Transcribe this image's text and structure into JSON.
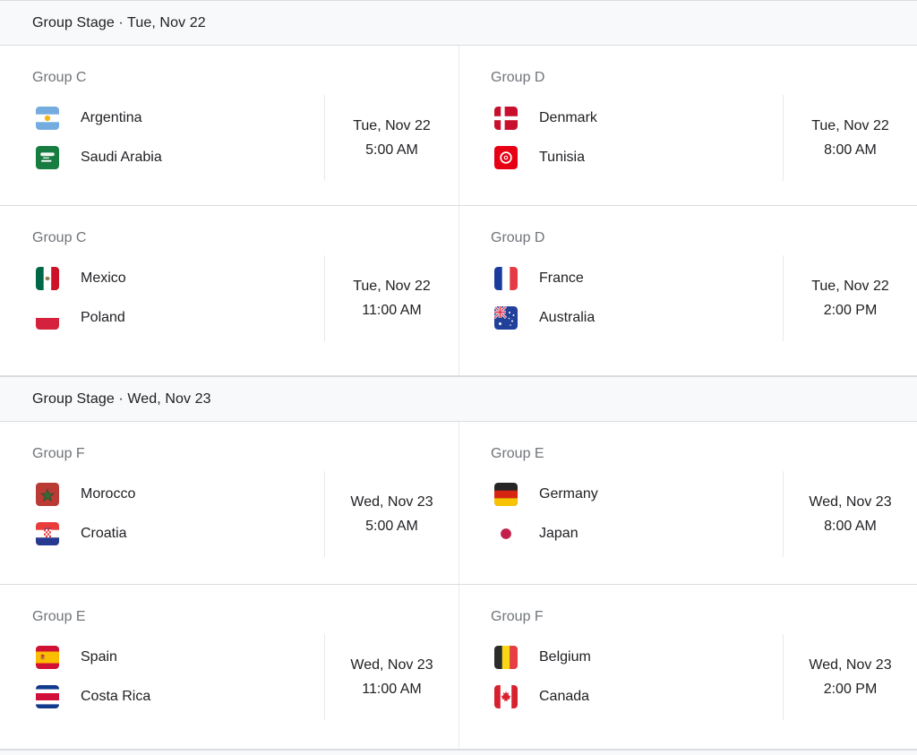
{
  "colors": {
    "section_background": "#f8f9fa",
    "row_border": "#dadce0",
    "inner_divider": "#e8eaed",
    "text_primary": "#202124",
    "text_secondary": "#70757a"
  },
  "sections": [
    {
      "header": "Group Stage · Tue, Nov 22",
      "matches": [
        {
          "group": "Group C",
          "date": "Tue, Nov 22",
          "time": "5:00 AM",
          "teams": [
            {
              "name": "Argentina",
              "flag": "argentina"
            },
            {
              "name": "Saudi Arabia",
              "flag": "saudi-arabia"
            }
          ]
        },
        {
          "group": "Group D",
          "date": "Tue, Nov 22",
          "time": "8:00 AM",
          "teams": [
            {
              "name": "Denmark",
              "flag": "denmark"
            },
            {
              "name": "Tunisia",
              "flag": "tunisia"
            }
          ]
        },
        {
          "group": "Group C",
          "date": "Tue, Nov 22",
          "time": "11:00 AM",
          "teams": [
            {
              "name": "Mexico",
              "flag": "mexico"
            },
            {
              "name": "Poland",
              "flag": "poland"
            }
          ]
        },
        {
          "group": "Group D",
          "date": "Tue, Nov 22",
          "time": "2:00 PM",
          "teams": [
            {
              "name": "France",
              "flag": "france"
            },
            {
              "name": "Australia",
              "flag": "australia"
            }
          ]
        }
      ]
    },
    {
      "header": "Group Stage · Wed, Nov 23",
      "matches": [
        {
          "group": "Group F",
          "date": "Wed, Nov 23",
          "time": "5:00 AM",
          "teams": [
            {
              "name": "Morocco",
              "flag": "morocco"
            },
            {
              "name": "Croatia",
              "flag": "croatia"
            }
          ]
        },
        {
          "group": "Group E",
          "date": "Wed, Nov 23",
          "time": "8:00 AM",
          "teams": [
            {
              "name": "Germany",
              "flag": "germany"
            },
            {
              "name": "Japan",
              "flag": "japan"
            }
          ]
        },
        {
          "group": "Group E",
          "date": "Wed, Nov 23",
          "time": "11:00 AM",
          "teams": [
            {
              "name": "Spain",
              "flag": "spain"
            },
            {
              "name": "Costa Rica",
              "flag": "costa-rica"
            }
          ]
        },
        {
          "group": "Group F",
          "date": "Wed, Nov 23",
          "time": "2:00 PM",
          "teams": [
            {
              "name": "Belgium",
              "flag": "belgium"
            },
            {
              "name": "Canada",
              "flag": "canada"
            }
          ]
        }
      ]
    }
  ]
}
